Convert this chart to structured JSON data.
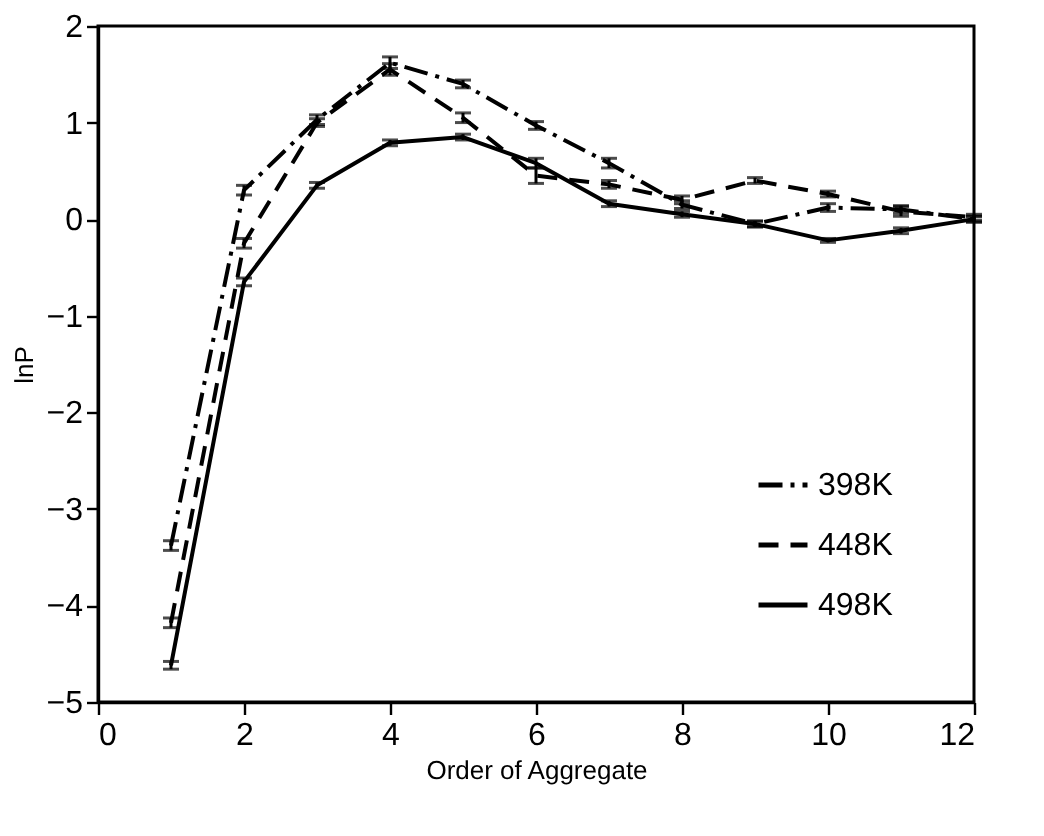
{
  "chart_data": {
    "type": "line",
    "xlabel": "Order of Aggregate",
    "ylabel": "lnP",
    "x": [
      1,
      2,
      3,
      4,
      5,
      6,
      7,
      8,
      9,
      10,
      11,
      12
    ],
    "series": [
      {
        "name": "398K",
        "color": "#000000",
        "line_style": "dashdot",
        "values": [
          -3.38,
          0.3,
          1.03,
          1.62,
          1.4,
          0.97,
          0.58,
          0.15,
          -0.05,
          0.12,
          0.1,
          0.0
        ],
        "errors": [
          0.05,
          0.05,
          0.05,
          0.06,
          0.04,
          0.04,
          0.05,
          0.04,
          0.03,
          0.04,
          0.04,
          0.03
        ]
      },
      {
        "name": "448K",
        "color": "#000000",
        "line_style": "dashed",
        "values": [
          -4.18,
          -0.25,
          1.0,
          1.55,
          1.05,
          0.45,
          0.36,
          0.2,
          0.4,
          0.26,
          0.08,
          0.02
        ],
        "errors": [
          0.05,
          0.05,
          0.04,
          0.06,
          0.05,
          0.08,
          0.04,
          0.04,
          0.03,
          0.03,
          0.05,
          0.03
        ]
      },
      {
        "name": "498K",
        "color": "#000000",
        "line_style": "solid",
        "values": [
          -4.62,
          -0.65,
          0.35,
          0.79,
          0.85,
          0.58,
          0.16,
          0.05,
          -0.05,
          -0.22,
          -0.12,
          0.0
        ],
        "errors": [
          0.04,
          0.04,
          0.03,
          0.03,
          0.03,
          0.05,
          0.03,
          0.03,
          0.03,
          0.02,
          0.03,
          0.03
        ]
      }
    ],
    "xlim": [
      0,
      12
    ],
    "xticks": [
      0,
      2,
      4,
      6,
      8,
      10,
      12
    ],
    "ylim": [
      -5,
      2
    ],
    "yticks": [
      -5,
      -4,
      -3,
      -2,
      -1,
      0,
      1,
      2
    ],
    "legend": "bottom right",
    "grid": false,
    "marker": "none"
  }
}
